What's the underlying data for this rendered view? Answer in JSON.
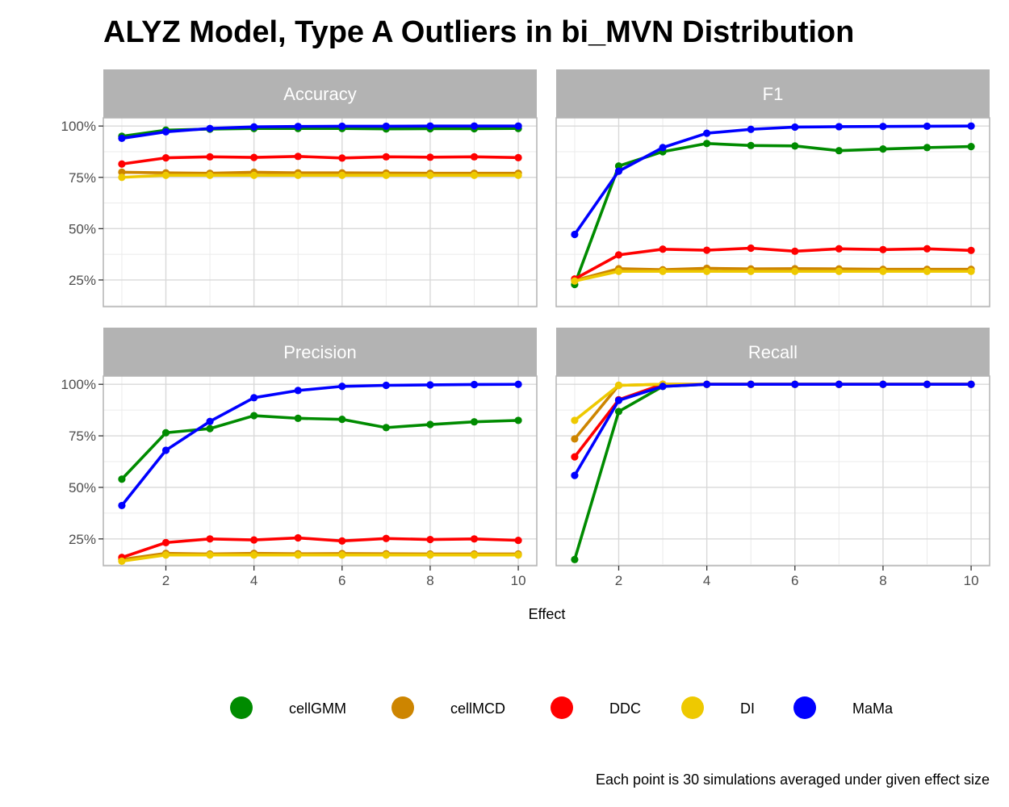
{
  "chart_data": {
    "type": "line",
    "title": "ALYZ Model, Type A Outliers in bi_MVN Distribution",
    "xlabel": "Effect",
    "ylabel": "",
    "caption": "Each point is 30 simulations averaged under given effect size",
    "x": [
      1,
      2,
      3,
      4,
      5,
      6,
      7,
      8,
      9,
      10
    ],
    "xticks": [
      2,
      4,
      6,
      8,
      10
    ],
    "xlim": [
      0.58,
      10.42
    ],
    "ylim": [
      0.12,
      1.04
    ],
    "yticks": [
      0.25,
      0.5,
      0.75,
      1.0
    ],
    "ytick_labels": [
      "25%",
      "50%",
      "75%",
      "100%"
    ],
    "grid": true,
    "legend_position": "bottom",
    "series_meta": [
      {
        "name": "cellGMM",
        "color": "#008B00"
      },
      {
        "name": "cellMCD",
        "color": "#CD8500"
      },
      {
        "name": "DDC",
        "color": "#FF0000"
      },
      {
        "name": "DI",
        "color": "#EEC900"
      },
      {
        "name": "MaMa",
        "color": "#0000FF"
      }
    ],
    "panels": [
      {
        "name": "Accuracy",
        "series": {
          "cellGMM": [
            0.95,
            0.98,
            0.985,
            0.988,
            0.988,
            0.988,
            0.986,
            0.987,
            0.987,
            0.988
          ],
          "cellMCD": [
            0.775,
            0.772,
            0.77,
            0.775,
            0.772,
            0.772,
            0.771,
            0.77,
            0.77,
            0.77
          ],
          "DDC": [
            0.815,
            0.845,
            0.85,
            0.847,
            0.852,
            0.844,
            0.85,
            0.848,
            0.85,
            0.846
          ],
          "DI": [
            0.75,
            0.76,
            0.76,
            0.76,
            0.76,
            0.76,
            0.76,
            0.76,
            0.76,
            0.76
          ],
          "MaMa": [
            0.94,
            0.972,
            0.988,
            0.996,
            0.998,
            0.999,
            0.999,
            1.0,
            1.0,
            1.0
          ]
        }
      },
      {
        "name": "F1",
        "series": {
          "cellGMM": [
            0.228,
            0.805,
            0.875,
            0.915,
            0.905,
            0.903,
            0.88,
            0.888,
            0.895,
            0.9
          ],
          "cellMCD": [
            0.248,
            0.305,
            0.3,
            0.307,
            0.304,
            0.305,
            0.304,
            0.302,
            0.302,
            0.302
          ],
          "DDC": [
            0.255,
            0.372,
            0.4,
            0.395,
            0.405,
            0.39,
            0.402,
            0.398,
            0.402,
            0.394
          ],
          "DI": [
            0.245,
            0.292,
            0.292,
            0.292,
            0.292,
            0.292,
            0.292,
            0.292,
            0.292,
            0.292
          ],
          "MaMa": [
            0.472,
            0.78,
            0.895,
            0.965,
            0.984,
            0.995,
            0.997,
            0.998,
            0.999,
            1.0
          ]
        }
      },
      {
        "name": "Precision",
        "series": {
          "cellGMM": [
            0.54,
            0.765,
            0.785,
            0.848,
            0.835,
            0.83,
            0.79,
            0.805,
            0.818,
            0.825
          ],
          "cellMCD": [
            0.15,
            0.18,
            0.177,
            0.18,
            0.178,
            0.179,
            0.178,
            0.177,
            0.177,
            0.177
          ],
          "DDC": [
            0.16,
            0.232,
            0.25,
            0.245,
            0.255,
            0.24,
            0.252,
            0.247,
            0.25,
            0.243
          ],
          "DI": [
            0.142,
            0.172,
            0.172,
            0.172,
            0.172,
            0.172,
            0.172,
            0.172,
            0.172,
            0.172
          ],
          "MaMa": [
            0.412,
            0.68,
            0.82,
            0.935,
            0.97,
            0.99,
            0.995,
            0.997,
            0.999,
            1.0
          ]
        }
      },
      {
        "name": "Recall",
        "series": {
          "cellGMM": [
            0.15,
            0.868,
            0.99,
            1.0,
            1.0,
            1.0,
            1.0,
            1.0,
            1.0,
            1.0
          ],
          "cellMCD": [
            0.735,
            0.995,
            1.0,
            1.0,
            1.0,
            1.0,
            1.0,
            1.0,
            1.0,
            1.0
          ],
          "DDC": [
            0.648,
            0.925,
            1.0,
            1.0,
            1.0,
            1.0,
            1.0,
            1.0,
            1.0,
            1.0
          ],
          "DI": [
            0.825,
            0.995,
            1.0,
            1.0,
            1.0,
            1.0,
            1.0,
            1.0,
            1.0,
            1.0
          ],
          "MaMa": [
            0.558,
            0.922,
            0.99,
            1.0,
            1.0,
            1.0,
            1.0,
            1.0,
            1.0,
            1.0
          ]
        }
      }
    ]
  }
}
